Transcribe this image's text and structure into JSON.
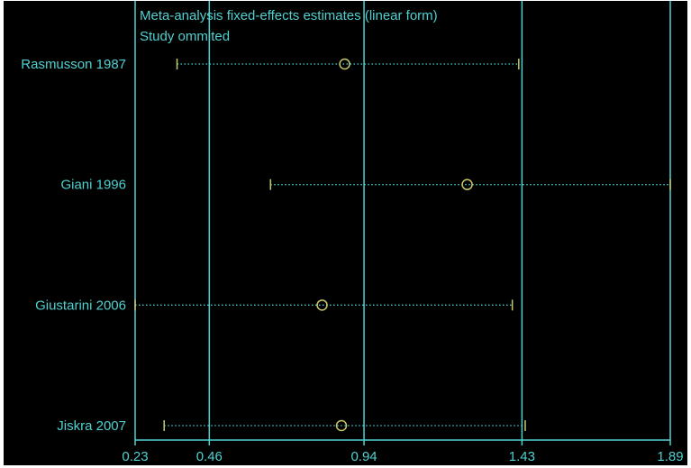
{
  "chart_data": {
    "type": "forest",
    "title": "Meta-analysis fixed-effects estimates (linear form)",
    "subtitle": "Study ommited",
    "x_ticks": [
      0.23,
      0.46,
      0.94,
      1.43,
      1.89
    ],
    "reference_lines": [
      0.46,
      0.94,
      1.43
    ],
    "xlim": [
      0.23,
      1.89
    ],
    "studies": [
      {
        "label": "Rasmusson 1987",
        "estimate": 0.88,
        "ci_low": 0.36,
        "ci_high": 1.42
      },
      {
        "label": "Giani 1996",
        "estimate": 1.26,
        "ci_low": 0.65,
        "ci_high": 1.89
      },
      {
        "label": "Giustarini 2006",
        "estimate": 0.81,
        "ci_low": 0.23,
        "ci_high": 1.4
      },
      {
        "label": "Jiskra 2007",
        "estimate": 0.87,
        "ci_low": 0.32,
        "ci_high": 1.44
      }
    ]
  },
  "colors": {
    "background": "#000000",
    "axis": "#4fd1d1",
    "ci_line": "#4fd1d1",
    "marker": "#c9c96b",
    "frame": "#ffffff"
  }
}
